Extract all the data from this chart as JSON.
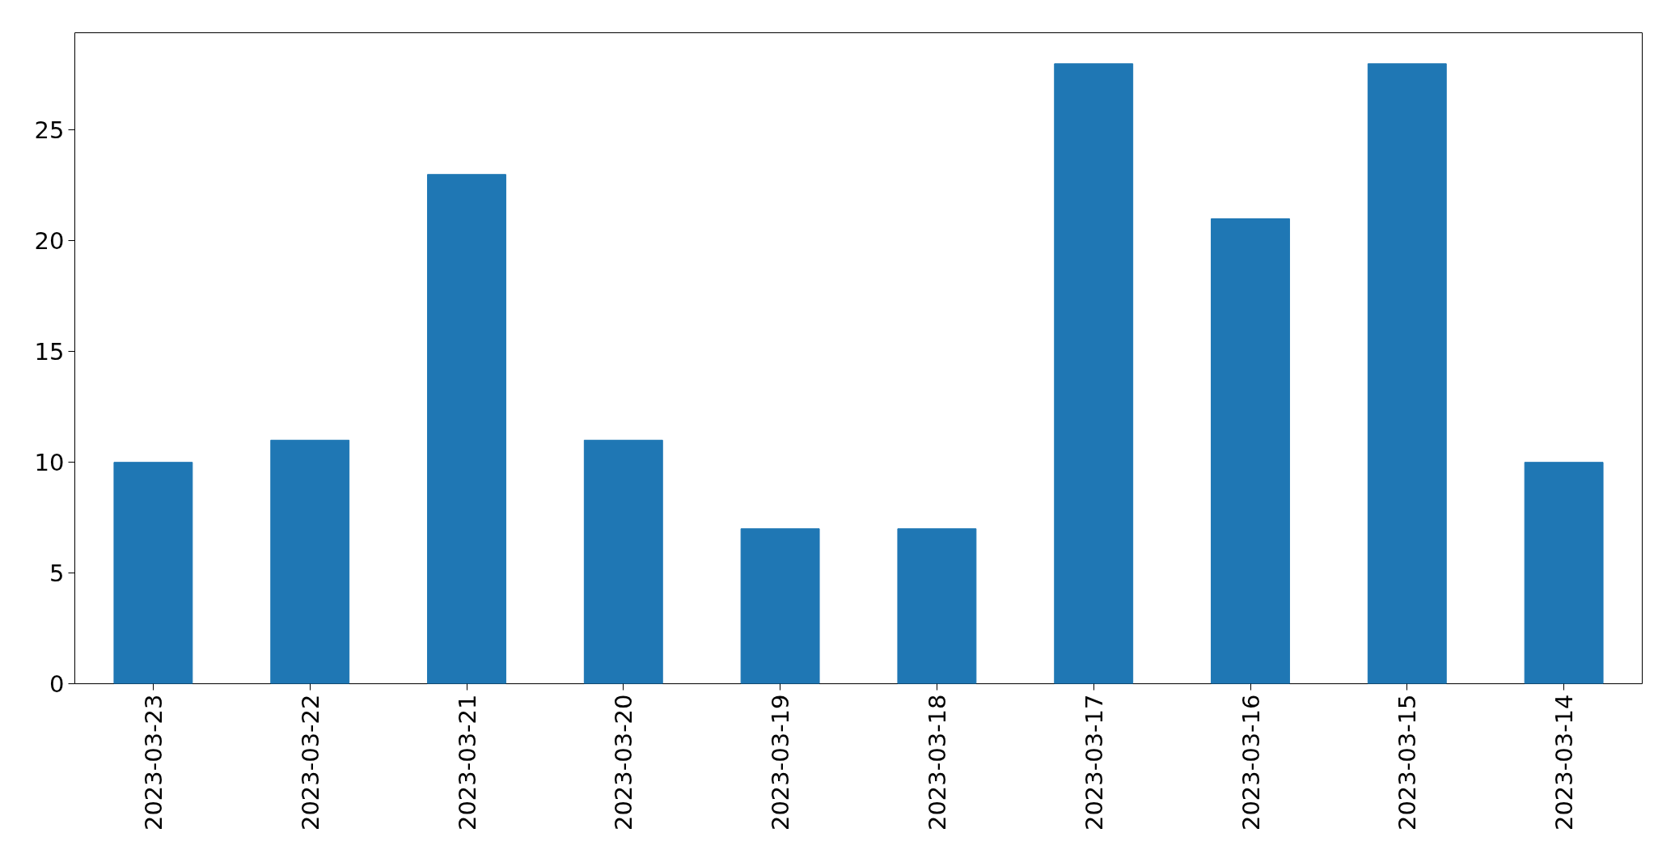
{
  "chart_data": {
    "type": "bar",
    "categories": [
      "2023-03-23",
      "2023-03-22",
      "2023-03-21",
      "2023-03-20",
      "2023-03-19",
      "2023-03-18",
      "2023-03-17",
      "2023-03-16",
      "2023-03-15",
      "2023-03-14"
    ],
    "values": [
      10,
      11,
      23,
      11,
      7,
      7,
      28,
      21,
      28,
      10
    ],
    "color": "#1f77b4",
    "ylim": [
      0,
      29.4
    ],
    "yticks": [
      0,
      5,
      10,
      15,
      20,
      25
    ],
    "grid": false
  }
}
